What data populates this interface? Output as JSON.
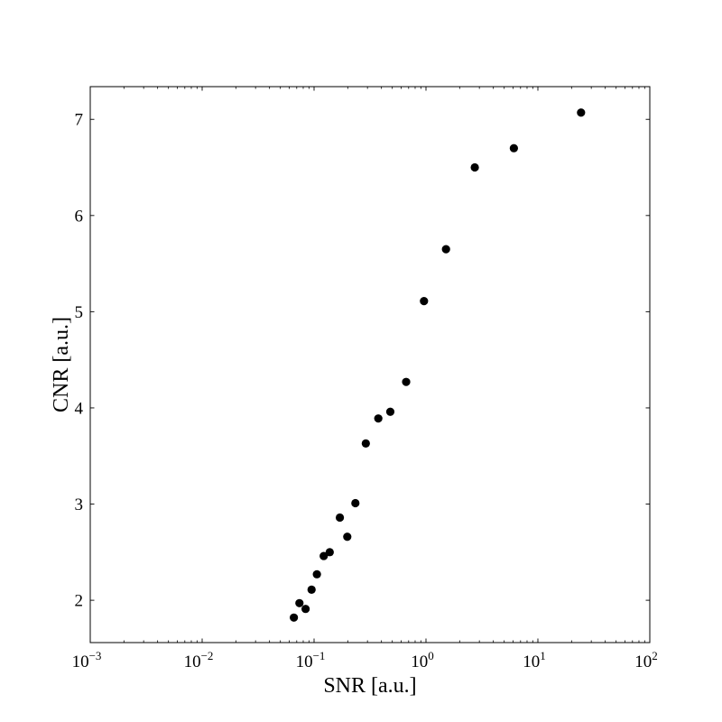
{
  "chart_data": {
    "type": "scatter",
    "title": "",
    "xlabel": "SNR [a.u.]",
    "ylabel": "CNR [a.u.]",
    "x_scale": "log",
    "xlim": [
      0.001,
      100
    ],
    "ylim": [
      1.56,
      7.34
    ],
    "x_ticks": [
      {
        "value": 0.001,
        "base": "10",
        "exp": "−3"
      },
      {
        "value": 0.01,
        "base": "10",
        "exp": "−2"
      },
      {
        "value": 0.1,
        "base": "10",
        "exp": "−1"
      },
      {
        "value": 1,
        "base": "10",
        "exp": "0"
      },
      {
        "value": 10,
        "base": "10",
        "exp": "1"
      },
      {
        "value": 100,
        "base": "10",
        "exp": "2"
      }
    ],
    "y_ticks": [
      2,
      3,
      4,
      5,
      6,
      7
    ],
    "grid": false,
    "legend": "none",
    "marker_color": "#000000",
    "points": [
      {
        "x": 0.066,
        "y": 1.82
      },
      {
        "x": 0.074,
        "y": 1.97
      },
      {
        "x": 0.084,
        "y": 1.91
      },
      {
        "x": 0.095,
        "y": 2.11
      },
      {
        "x": 0.106,
        "y": 2.27
      },
      {
        "x": 0.122,
        "y": 2.46
      },
      {
        "x": 0.138,
        "y": 2.5
      },
      {
        "x": 0.17,
        "y": 2.86
      },
      {
        "x": 0.198,
        "y": 2.66
      },
      {
        "x": 0.234,
        "y": 3.01
      },
      {
        "x": 0.29,
        "y": 3.63
      },
      {
        "x": 0.375,
        "y": 3.89
      },
      {
        "x": 0.48,
        "y": 3.96
      },
      {
        "x": 0.665,
        "y": 4.27
      },
      {
        "x": 0.96,
        "y": 5.11
      },
      {
        "x": 1.51,
        "y": 5.65
      },
      {
        "x": 2.73,
        "y": 6.5
      },
      {
        "x": 6.1,
        "y": 6.7
      },
      {
        "x": 24.3,
        "y": 7.07
      }
    ]
  }
}
